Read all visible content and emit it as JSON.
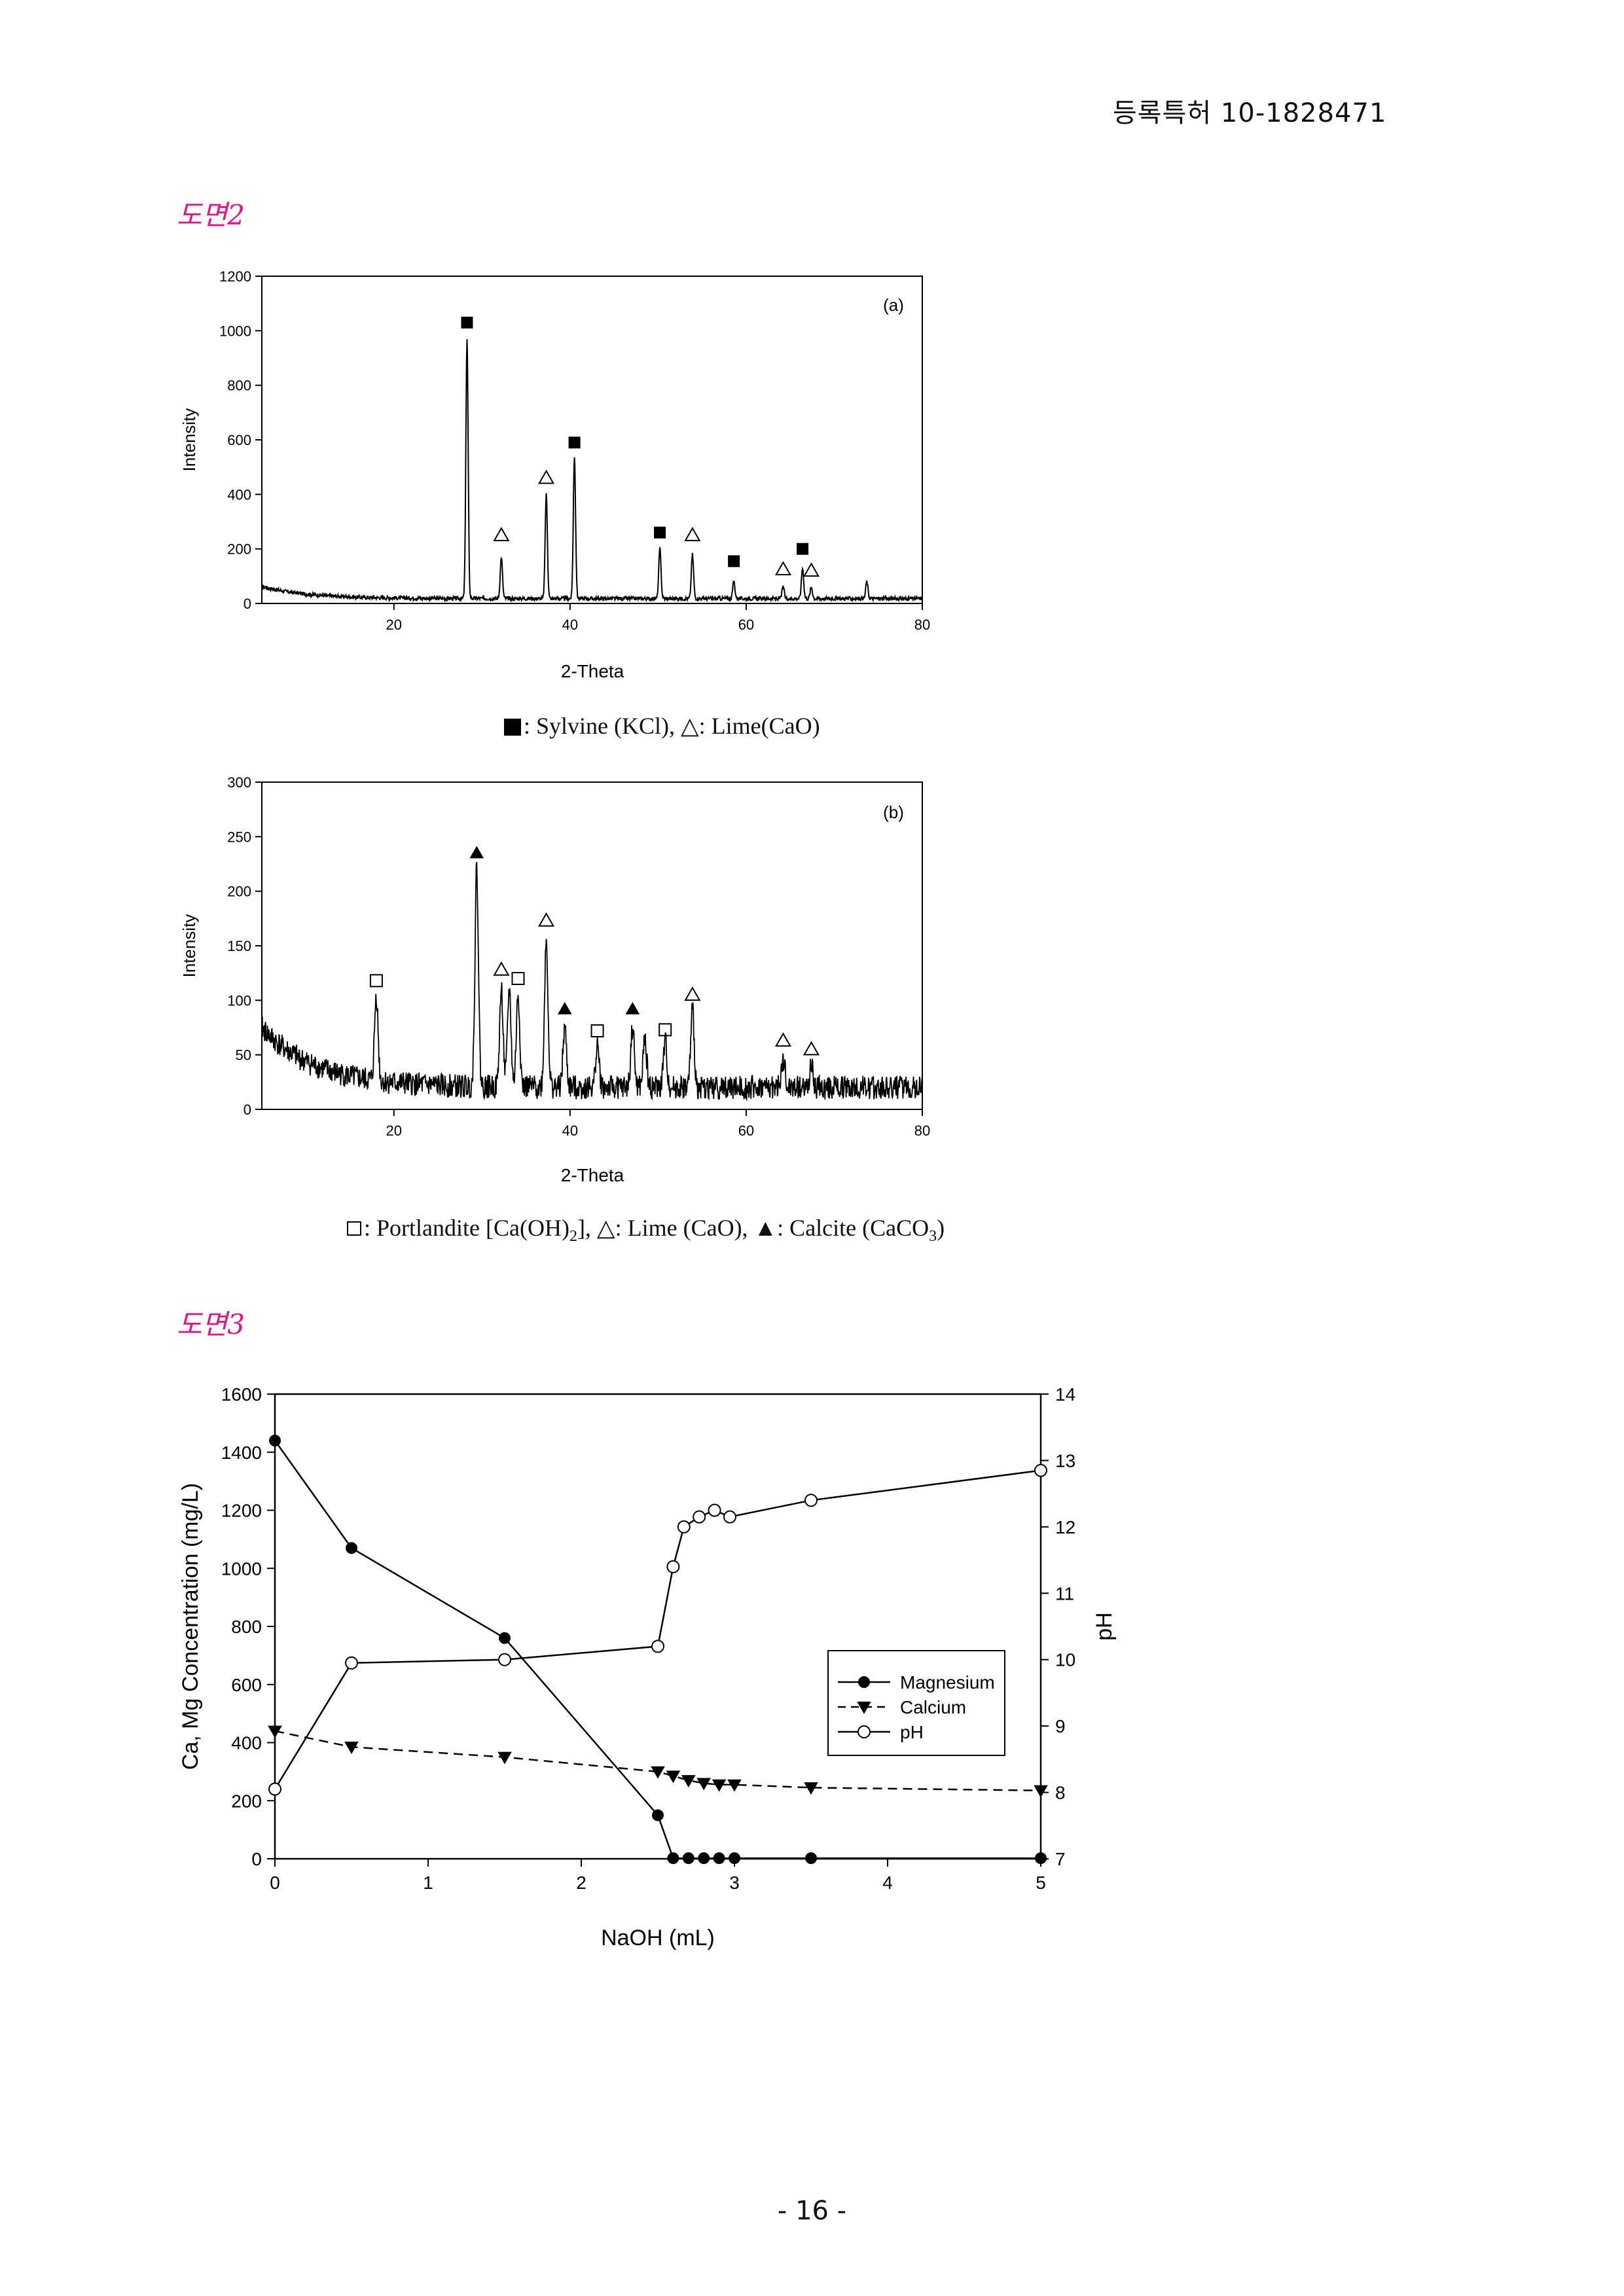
{
  "header": {
    "patent_number": "등록특허 10-1828471"
  },
  "figure2": {
    "label": "도면2",
    "panel_a": {
      "tag": "(a)",
      "xlabel": "2-Theta",
      "ylabel": "Intensity",
      "x_ticks": [
        "20",
        "40",
        "60",
        "80"
      ],
      "y_ticks": [
        "0",
        "200",
        "400",
        "600",
        "800",
        "1000",
        "1200"
      ],
      "xlim": [
        5,
        80
      ],
      "ylim": [
        0,
        1200
      ],
      "peaks": [
        {
          "x": 28.3,
          "y": 970,
          "marker": "filled-square",
          "my": 1030
        },
        {
          "x": 32.2,
          "y": 170,
          "marker": "open-triangle",
          "my": 250
        },
        {
          "x": 37.3,
          "y": 400,
          "marker": "open-triangle",
          "my": 460
        },
        {
          "x": 40.5,
          "y": 540,
          "marker": "filled-square",
          "my": 590
        },
        {
          "x": 50.2,
          "y": 200,
          "marker": "filled-square",
          "my": 260
        },
        {
          "x": 53.9,
          "y": 180,
          "marker": "open-triangle",
          "my": 250
        },
        {
          "x": 58.6,
          "y": 80,
          "marker": "filled-square",
          "my": 155
        },
        {
          "x": 64.2,
          "y": 60,
          "marker": "open-triangle",
          "my": 125
        },
        {
          "x": 66.4,
          "y": 130,
          "marker": "filled-square",
          "my": 200
        },
        {
          "x": 67.4,
          "y": 60,
          "marker": "open-triangle",
          "my": 120
        },
        {
          "x": 73.7,
          "y": 80
        }
      ],
      "legend": ": Sylvine (KCl), △: Lime(CaO)"
    },
    "panel_b": {
      "tag": "(b)",
      "xlabel": "2-Theta",
      "ylabel": "Intensity",
      "x_ticks": [
        "20",
        "40",
        "60",
        "80"
      ],
      "y_ticks": [
        "0",
        "50",
        "100",
        "150",
        "200",
        "250",
        "300"
      ],
      "xlim": [
        5,
        80
      ],
      "ylim": [
        0,
        300
      ],
      "peaks": [
        {
          "x": 18.0,
          "y": 105,
          "marker": "open-square",
          "my": 118
        },
        {
          "x": 29.4,
          "y": 220,
          "marker": "filled-triangle",
          "my": 235
        },
        {
          "x": 32.2,
          "y": 110,
          "marker": "open-triangle",
          "my": 128
        },
        {
          "x": 33.1,
          "y": 110
        },
        {
          "x": 34.1,
          "y": 105,
          "marker": "open-square",
          "my": 120
        },
        {
          "x": 37.3,
          "y": 155,
          "marker": "open-triangle",
          "my": 173
        },
        {
          "x": 39.4,
          "y": 75,
          "marker": "filled-triangle",
          "my": 92
        },
        {
          "x": 43.1,
          "y": 60,
          "marker": "open-square",
          "my": 72
        },
        {
          "x": 47.1,
          "y": 75,
          "marker": "filled-triangle",
          "my": 92
        },
        {
          "x": 48.5,
          "y": 65
        },
        {
          "x": 50.8,
          "y": 62,
          "marker": "open-square",
          "my": 73
        },
        {
          "x": 53.9,
          "y": 90,
          "marker": "open-triangle",
          "my": 105
        },
        {
          "x": 64.2,
          "y": 45,
          "marker": "open-triangle",
          "my": 63
        },
        {
          "x": 67.4,
          "y": 38,
          "marker": "open-triangle",
          "my": 55
        }
      ],
      "legend_parts": [
        ": Portlandite [Ca(OH)",
        "2",
        "], △: Lime (CaO), ▲: Calcite (CaCO",
        "3",
        ")"
      ]
    }
  },
  "figure3": {
    "label": "도면3",
    "chart_data": {
      "type": "line",
      "xlabel": "NaOH (mL)",
      "ylabel_left": "Ca, Mg Concentration (mg/L)",
      "ylabel_right": "pH",
      "xlim": [
        0,
        5
      ],
      "ylim_left": [
        0,
        1600
      ],
      "ylim_right": [
        7,
        14
      ],
      "x_ticks": [
        "0",
        "1",
        "2",
        "3",
        "4",
        "5"
      ],
      "y_left_ticks": [
        "0",
        "200",
        "400",
        "600",
        "800",
        "1000",
        "1200",
        "1400",
        "1600"
      ],
      "y_right_ticks": [
        "7",
        "8",
        "9",
        "10",
        "11",
        "12",
        "13",
        "14"
      ],
      "legend_placement": "right",
      "series": [
        {
          "name": "Magnesium",
          "axis": "left",
          "marker": "filled-circle",
          "line": "solid",
          "x": [
            0,
            0.5,
            1.5,
            2.5,
            2.6,
            2.7,
            2.8,
            2.9,
            3.0,
            3.5,
            5.0
          ],
          "y": [
            1440,
            1070,
            760,
            150,
            2,
            2,
            2,
            2,
            2,
            2,
            2
          ]
        },
        {
          "name": "Calcium",
          "axis": "left",
          "marker": "filled-triangle-down",
          "line": "dashed",
          "x": [
            0,
            0.5,
            1.5,
            2.5,
            2.6,
            2.7,
            2.8,
            2.9,
            3.0,
            3.5,
            5.0
          ],
          "y": [
            440,
            385,
            350,
            300,
            285,
            270,
            260,
            255,
            255,
            245,
            235
          ]
        },
        {
          "name": "pH",
          "axis": "right",
          "marker": "open-circle",
          "line": "solid",
          "x": [
            0,
            0.5,
            1.5,
            2.5,
            2.6,
            2.67,
            2.77,
            2.87,
            2.97,
            3.5,
            5.0
          ],
          "y": [
            8.05,
            9.95,
            10.0,
            10.2,
            11.4,
            12.0,
            12.15,
            12.25,
            12.15,
            12.4,
            12.85
          ]
        }
      ]
    }
  },
  "footer": {
    "page_number": "- 16 -"
  }
}
